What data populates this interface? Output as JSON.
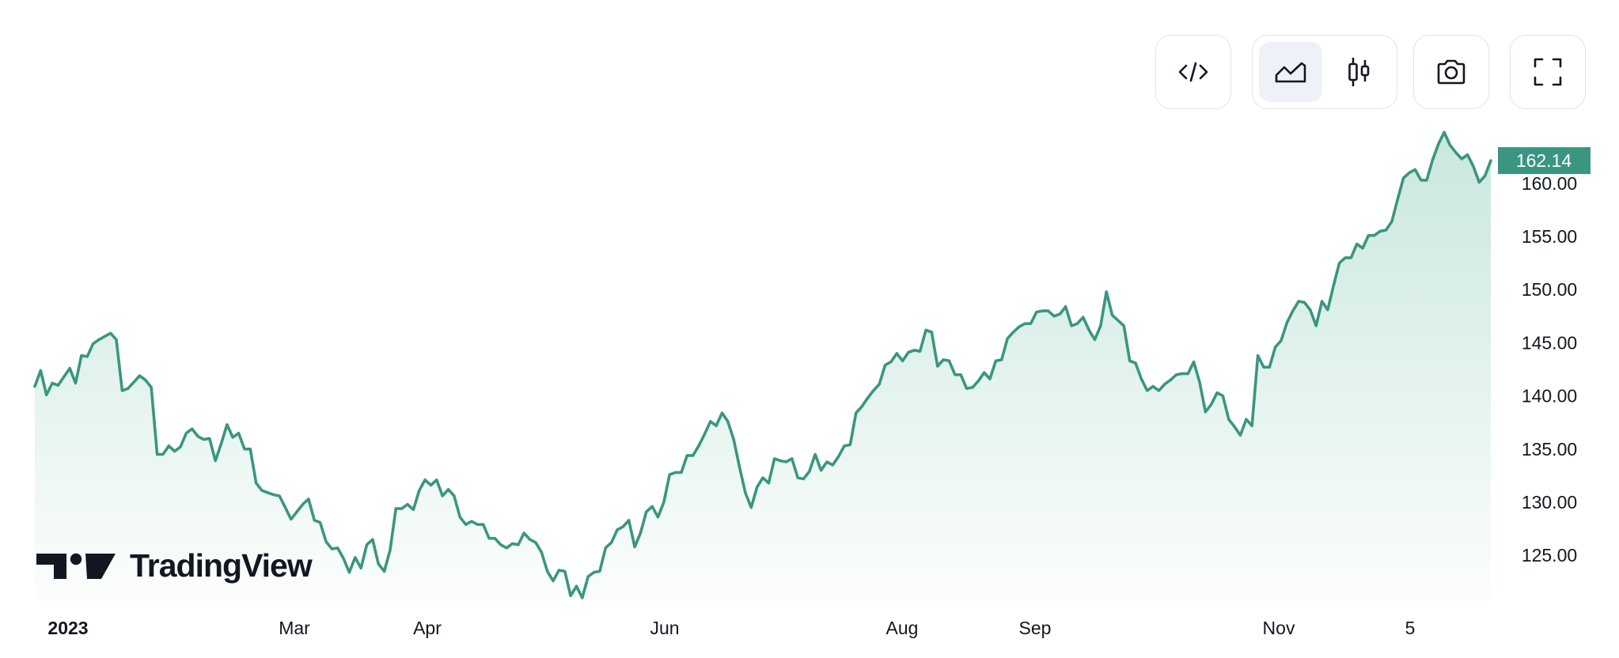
{
  "toolbar": {
    "buttons": [
      {
        "name": "embed-code-button",
        "icon": "code-icon"
      },
      {
        "name": "area-chart-toggle",
        "icon": "area-chart-icon",
        "active": true
      },
      {
        "name": "candlestick-chart-toggle",
        "icon": "candlestick-icon",
        "active": false
      },
      {
        "name": "screenshot-button",
        "icon": "camera-icon"
      },
      {
        "name": "fullscreen-button",
        "icon": "fullscreen-icon"
      }
    ]
  },
  "logo": {
    "text": "TradingView"
  },
  "colors": {
    "line": "#3a9680",
    "fill_top": "#a8d8c9",
    "price_badge": "#3a9680",
    "text": "#131722"
  },
  "chart_data": {
    "type": "area",
    "title": "",
    "x_tick_labels": [
      "2023",
      "Mar",
      "Apr",
      "Jun",
      "Aug",
      "Sep",
      "Nov",
      "5"
    ],
    "y_tick_labels": [
      "160.00",
      "155.00",
      "150.00",
      "145.00",
      "140.00",
      "135.00",
      "130.00",
      "125.00"
    ],
    "y_ticks": [
      160,
      155,
      150,
      145,
      140,
      135,
      130,
      125
    ],
    "ylim": [
      120.7,
      164.9
    ],
    "last_price_label": "162.14",
    "last_price": 162.14,
    "grid": false,
    "series": [
      {
        "values": [
          140.9,
          142.4,
          140.1,
          141.2,
          141.0,
          141.8,
          142.6,
          141.2,
          143.8,
          143.7,
          144.9,
          145.3,
          145.6,
          145.9,
          145.3,
          140.5,
          140.7,
          141.3,
          141.9,
          141.5,
          140.8,
          134.5,
          134.5,
          135.3,
          134.8,
          135.2,
          136.5,
          136.9,
          136.2,
          135.9,
          136.0,
          133.9,
          135.5,
          137.3,
          136.1,
          136.5,
          135.0,
          135.0,
          131.8,
          131.1,
          130.9,
          130.7,
          130.6,
          129.5,
          128.4,
          129.1,
          129.8,
          130.3,
          128.3,
          128.1,
          126.3,
          125.6,
          125.7,
          124.7,
          123.4,
          124.8,
          123.8,
          126.0,
          126.5,
          124.2,
          123.5,
          125.5,
          129.4,
          129.4,
          129.8,
          129.3,
          131.1,
          132.1,
          131.6,
          132.1,
          130.6,
          131.2,
          130.6,
          128.6,
          127.9,
          128.2,
          127.9,
          127.9,
          126.6,
          126.6,
          126.0,
          125.7,
          126.1,
          126.0,
          127.1,
          126.5,
          126.2,
          125.3,
          123.5,
          122.6,
          123.6,
          123.5,
          121.2,
          122.1,
          121.0,
          123.0,
          123.4,
          123.5,
          125.7,
          126.2,
          127.4,
          127.7,
          128.3,
          125.8,
          127.1,
          129.1,
          129.6,
          128.6,
          130.0,
          132.6,
          132.8,
          132.8,
          134.4,
          134.4,
          135.3,
          136.4,
          137.6,
          137.2,
          138.4,
          137.6,
          135.9,
          133.3,
          130.9,
          129.5,
          131.4,
          132.3,
          131.8,
          134.1,
          133.9,
          133.8,
          134.1,
          132.3,
          132.2,
          132.9,
          134.5,
          133.0,
          133.8,
          133.5,
          134.3,
          135.3,
          135.4,
          138.4,
          139.0,
          139.8,
          140.5,
          141.1,
          142.9,
          143.2,
          144.0,
          143.3,
          144.1,
          144.3,
          144.2,
          146.2,
          146.0,
          142.8,
          143.4,
          143.3,
          142.0,
          142.0,
          140.7,
          140.8,
          141.4,
          142.2,
          141.6,
          143.3,
          143.4,
          145.4,
          146.0,
          146.5,
          146.8,
          146.8,
          147.9,
          148.0,
          148.0,
          147.5,
          147.7,
          148.4,
          146.6,
          146.8,
          147.4,
          146.2,
          145.3,
          146.6,
          149.8,
          147.6,
          147.1,
          146.6,
          143.3,
          143.1,
          141.6,
          140.5,
          140.9,
          140.5,
          141.1,
          141.5,
          142.0,
          142.1,
          142.1,
          143.2,
          141.3,
          138.5,
          139.2,
          140.3,
          140.0,
          137.8,
          137.1,
          136.3,
          137.8,
          137.2,
          143.8,
          142.7,
          142.7,
          144.6,
          145.2,
          146.9,
          148.0,
          148.9,
          148.8,
          148.1,
          146.6,
          148.9,
          148.1,
          150.4,
          152.5,
          153.0,
          153.0,
          154.3,
          153.9,
          155.1,
          155.1,
          155.5,
          155.6,
          156.4,
          158.5,
          160.5,
          161.0,
          161.3,
          160.3,
          160.3,
          162.2,
          163.7,
          164.8,
          163.6,
          162.9,
          162.3,
          162.7,
          161.6,
          160.1,
          160.7,
          162.14
        ]
      }
    ]
  }
}
